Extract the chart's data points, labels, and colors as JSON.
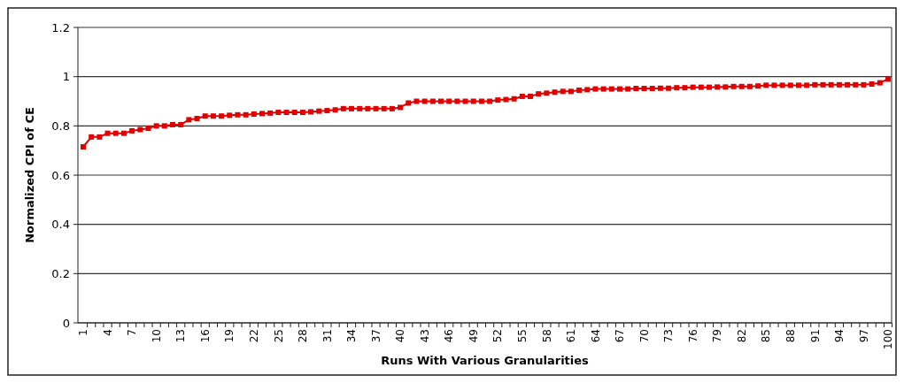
{
  "chart_data": {
    "type": "line",
    "xlabel": "Runs With Various Granularities",
    "ylabel": "Normalized CPI of CE",
    "categories": [
      "1",
      null,
      null,
      "4",
      null,
      null,
      "7",
      null,
      null,
      "10",
      null,
      null,
      "13",
      null,
      null,
      "16",
      null,
      null,
      "19",
      null,
      null,
      "22",
      null,
      null,
      "25",
      null,
      null,
      "28",
      null,
      null,
      "31",
      null,
      null,
      "34",
      null,
      null,
      "37",
      null,
      null,
      "40",
      null,
      null,
      "43",
      null,
      null,
      "46",
      null,
      null,
      "49",
      null,
      null,
      "52",
      null,
      null,
      "55",
      null,
      null,
      "58",
      null,
      null,
      "61",
      null,
      null,
      "64",
      null,
      null,
      "67",
      null,
      null,
      "70",
      null,
      null,
      "73",
      null,
      null,
      "76",
      null,
      null,
      "79",
      null,
      null,
      "82",
      null,
      null,
      "85",
      null,
      null,
      "88",
      null,
      null,
      "91",
      null,
      null,
      "94",
      null,
      null,
      "97",
      null,
      null,
      "100"
    ],
    "series": [
      {
        "color": "#e00000",
        "values": [
          0.715,
          0.755,
          0.755,
          0.77,
          0.77,
          0.77,
          0.78,
          0.785,
          0.79,
          0.8,
          0.8,
          0.805,
          0.805,
          0.825,
          0.83,
          0.84,
          0.84,
          0.84,
          0.843,
          0.845,
          0.845,
          0.848,
          0.85,
          0.852,
          0.855,
          0.855,
          0.855,
          0.855,
          0.857,
          0.86,
          0.862,
          0.865,
          0.87,
          0.87,
          0.87,
          0.87,
          0.87,
          0.87,
          0.87,
          0.875,
          0.893,
          0.9,
          0.9,
          0.9,
          0.9,
          0.9,
          0.9,
          0.9,
          0.9,
          0.9,
          0.9,
          0.905,
          0.907,
          0.91,
          0.92,
          0.92,
          0.93,
          0.933,
          0.937,
          0.94,
          0.94,
          0.945,
          0.947,
          0.95,
          0.95,
          0.95,
          0.95,
          0.95,
          0.952,
          0.952,
          0.952,
          0.953,
          0.953,
          0.955,
          0.955,
          0.957,
          0.957,
          0.957,
          0.958,
          0.958,
          0.96,
          0.96,
          0.96,
          0.962,
          0.965,
          0.965,
          0.965,
          0.965,
          0.965,
          0.965,
          0.967,
          0.967,
          0.967,
          0.967,
          0.967,
          0.967,
          0.967,
          0.97,
          0.975,
          0.99
        ]
      }
    ],
    "ylim": [
      0,
      1.2
    ],
    "yticks": [
      0,
      0.2,
      0.4,
      0.6,
      0.8,
      1,
      1.2
    ],
    "grid": "y",
    "marker": "square",
    "line_style": "solid"
  }
}
